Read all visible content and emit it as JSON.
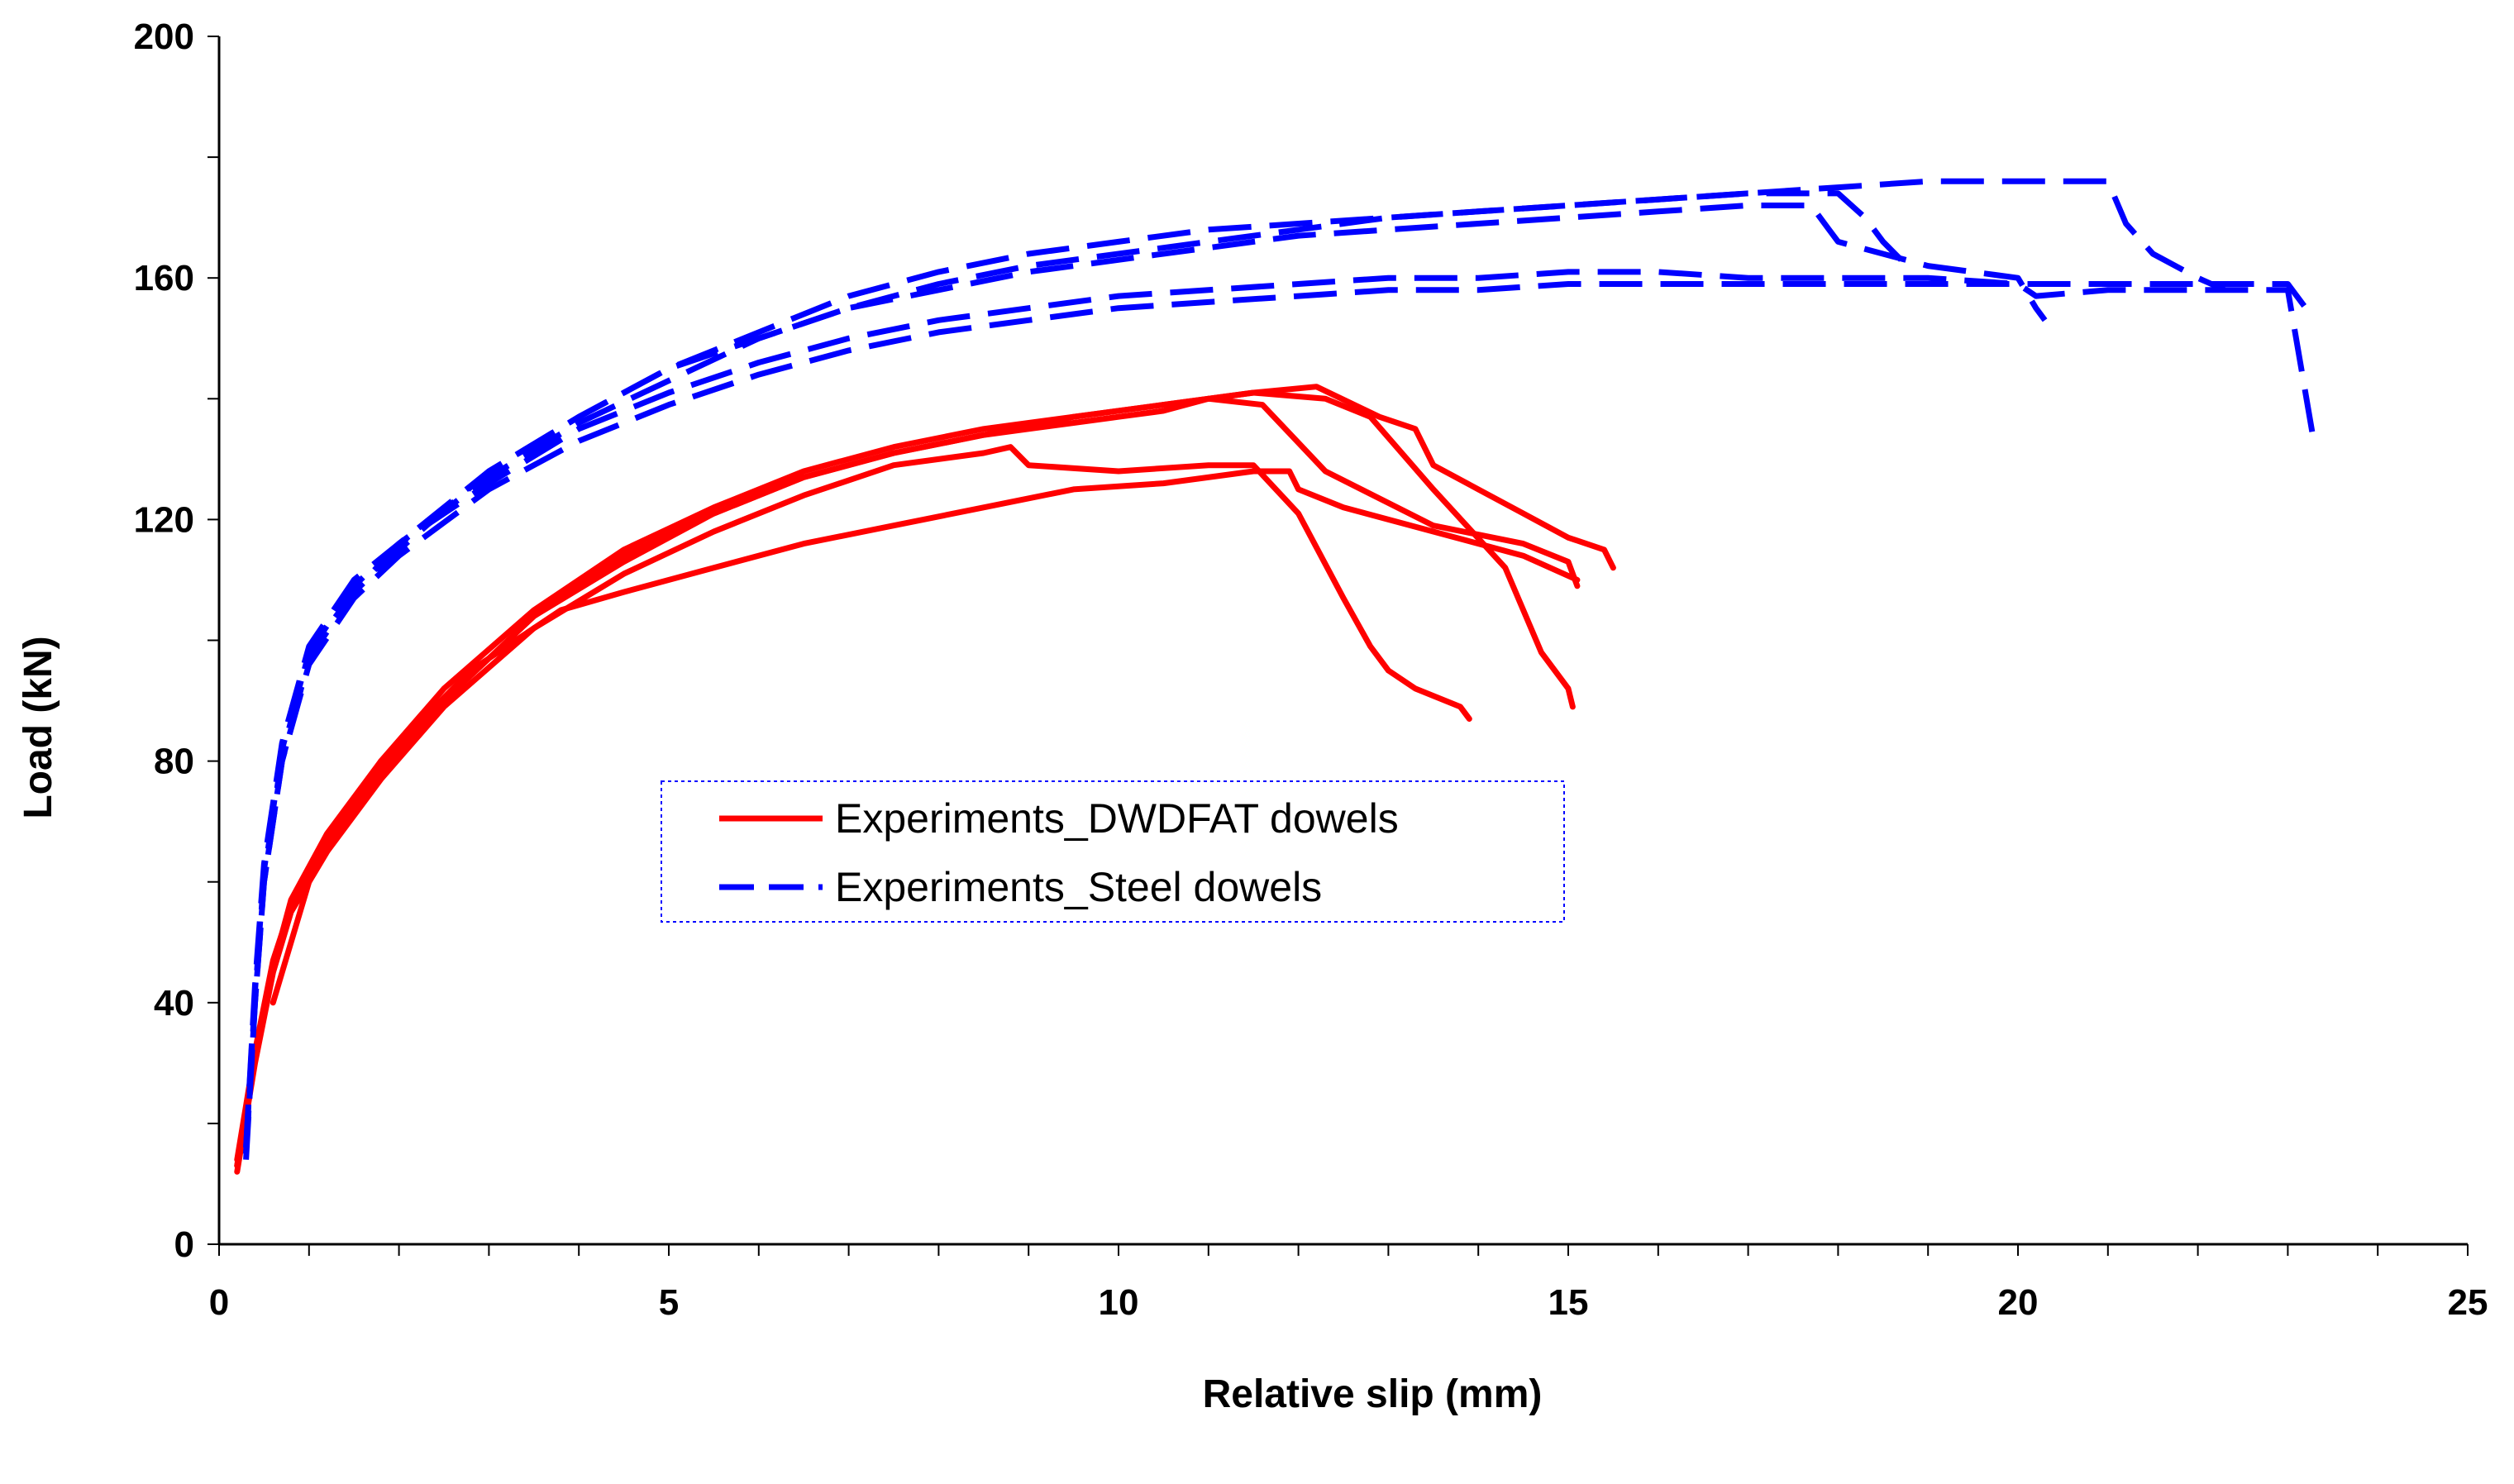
{
  "chart_data": {
    "type": "line",
    "title": "",
    "xlabel": "Relative slip (mm)",
    "ylabel": "Load (kN)",
    "xlim": [
      0,
      25
    ],
    "ylim": [
      0,
      200
    ],
    "xticks": [
      0,
      5,
      10,
      15,
      20,
      25
    ],
    "yticks": [
      0,
      40,
      80,
      120,
      160,
      200
    ],
    "grid": false,
    "legend_position": "center",
    "legend": [
      {
        "label": "Experiments_DWDFAT dowels",
        "color": "#ff0000",
        "style": "solid"
      },
      {
        "label": "Experiments_Steel dowels",
        "color": "#0000ff",
        "style": "dashed"
      }
    ],
    "series": [
      {
        "name": "Experiments_DWDFAT dowels",
        "group": 0,
        "x": [
          0.2,
          0.4,
          0.6,
          0.8,
          1.2,
          1.8,
          2.5,
          3.5,
          4.5,
          5.5,
          6.5,
          7.5,
          8.5,
          8.8,
          9,
          10,
          11,
          11.5,
          12,
          12.5,
          12.8,
          13,
          13.3,
          13.8,
          13.9
        ],
        "y": [
          12,
          30,
          45,
          55,
          65,
          77,
          89,
          102,
          111,
          118,
          124,
          129,
          131,
          132,
          129,
          128,
          129,
          129,
          121,
          107,
          99,
          95,
          92,
          89,
          87
        ]
      },
      {
        "name": "Experiments_DWDFAT dowels",
        "group": 0,
        "x": [
          0.2,
          0.4,
          0.6,
          0.8,
          1.2,
          1.8,
          2.5,
          3.5,
          4.5,
          5.5,
          6.5,
          7.5,
          8.5,
          9,
          9.5,
          10,
          10.5,
          11,
          11.6,
          12.3,
          13.5,
          14.5,
          15,
          15.1
        ],
        "y": [
          14,
          32,
          47,
          56,
          66,
          78,
          90,
          104,
          114,
          121,
          127,
          131,
          134,
          135,
          136,
          137,
          138,
          140,
          139,
          128,
          119,
          116,
          113,
          109
        ]
      },
      {
        "name": "Experiments_DWDFAT dowels",
        "group": 0,
        "x": [
          0.2,
          0.4,
          0.6,
          0.8,
          1.2,
          1.8,
          2.5,
          3.5,
          4.5,
          5.5,
          6.5,
          7.5,
          8.5,
          9.5,
          10.5,
          11.5,
          12.3,
          12.8,
          13.5,
          14.3,
          14.7,
          15,
          15.05
        ],
        "y": [
          13,
          31,
          46,
          57,
          68,
          80,
          92,
          105,
          115,
          122,
          128,
          132,
          135,
          137,
          139,
          141,
          140,
          137,
          125,
          112,
          98,
          92,
          89
        ]
      },
      {
        "name": "Experiments_DWDFAT dowels",
        "group": 0,
        "x": [
          0.2,
          0.4,
          0.6,
          0.8,
          1.2,
          1.8,
          2.5,
          3.5,
          4.5,
          5.5,
          6.5,
          7.5,
          8.5,
          9.5,
          10.5,
          11.5,
          12.2,
          12.9,
          13.3,
          13.5,
          14,
          14.5,
          15,
          15.4,
          15.5
        ],
        "y": [
          13,
          31,
          46,
          56,
          67,
          79,
          90,
          104,
          113,
          121,
          127,
          131,
          134,
          137,
          139,
          141,
          142,
          137,
          135,
          129,
          125,
          121,
          117,
          115,
          112
        ]
      },
      {
        "name": "Experiments_DWDFAT dowels",
        "group": 0,
        "x": [
          0.6,
          1,
          1.8,
          2.8,
          3.8,
          4.5,
          5.5,
          6.5,
          7.5,
          8.5,
          9.5,
          10.5,
          11.5,
          11.9,
          12,
          12.5,
          13.5,
          14.5,
          15.1
        ],
        "y": [
          40,
          60,
          80,
          95,
          105,
          108,
          112,
          116,
          119,
          122,
          125,
          126,
          128,
          128,
          125,
          122,
          118,
          114,
          110
        ]
      },
      {
        "name": "Experiments_Steel dowels",
        "group": 1,
        "x": [
          0.3,
          0.4,
          0.5,
          0.7,
          1,
          1.5,
          2,
          3,
          4,
          5,
          6,
          7,
          8,
          9,
          10,
          11,
          12,
          13,
          14,
          15,
          16,
          17,
          18,
          19,
          20,
          21,
          21.2,
          21.5,
          22,
          22.3
        ],
        "y": [
          15,
          40,
          60,
          80,
          97,
          108,
          115,
          128,
          137,
          145,
          151,
          157,
          161,
          164,
          166,
          168,
          169,
          170,
          171,
          172,
          173,
          174,
          175,
          176,
          176,
          176,
          169,
          164,
          160,
          158
        ]
      },
      {
        "name": "Experiments_Steel dowels",
        "group": 1,
        "x": [
          0.3,
          0.4,
          0.5,
          0.7,
          1,
          1.5,
          2,
          3,
          4,
          5,
          6,
          7,
          8,
          9,
          10,
          11,
          12,
          13,
          14,
          15,
          16,
          17,
          18,
          18.3,
          18.5,
          18.7
        ],
        "y": [
          16,
          42,
          62,
          82,
          98,
          109,
          116,
          127,
          136,
          143,
          150,
          155,
          159,
          162,
          164,
          166,
          168,
          170,
          171,
          172,
          173,
          174,
          174,
          170,
          166,
          163
        ]
      },
      {
        "name": "Experiments_Steel dowels",
        "group": 1,
        "x": [
          0.3,
          0.4,
          0.5,
          0.7,
          1,
          1.5,
          2,
          3,
          4,
          5,
          6,
          7,
          8,
          9,
          10,
          11,
          12,
          13,
          14,
          15,
          16,
          17,
          17.7,
          17.9,
          18,
          19,
          20,
          20.2,
          20.3
        ],
        "y": [
          15,
          41,
          61,
          81,
          98,
          108,
          116,
          128,
          137,
          145,
          150,
          155,
          158,
          161,
          163,
          165,
          167,
          168,
          169,
          170,
          171,
          172,
          172,
          168,
          166,
          162,
          160,
          155,
          153
        ]
      },
      {
        "name": "Experiments_Steel dowels",
        "group": 1,
        "x": [
          0.3,
          0.4,
          0.5,
          0.7,
          1,
          1.5,
          2,
          3,
          4,
          5,
          6,
          7,
          8,
          9,
          10,
          11,
          12,
          13,
          14,
          15,
          16,
          17,
          18,
          19,
          20,
          20.2,
          21,
          22,
          23,
          23.3
        ],
        "y": [
          16,
          43,
          63,
          83,
          99,
          110,
          116,
          126,
          135,
          141,
          146,
          150,
          153,
          155,
          157,
          158,
          159,
          160,
          160,
          161,
          161,
          160,
          160,
          160,
          159,
          157,
          158,
          158,
          158,
          132
        ]
      },
      {
        "name": "Experiments_Steel dowels",
        "group": 1,
        "x": [
          0.3,
          0.4,
          0.5,
          0.7,
          1,
          1.5,
          2,
          3,
          4,
          5,
          6,
          7,
          8,
          9,
          10,
          11,
          12,
          13,
          14,
          15,
          16,
          17,
          18,
          19,
          20,
          21,
          22,
          23,
          23.2
        ],
        "y": [
          14,
          40,
          60,
          80,
          96,
          107,
          114,
          125,
          133,
          139,
          144,
          148,
          151,
          153,
          155,
          156,
          157,
          158,
          158,
          159,
          159,
          159,
          159,
          159,
          159,
          159,
          159,
          159,
          155
        ]
      }
    ]
  }
}
